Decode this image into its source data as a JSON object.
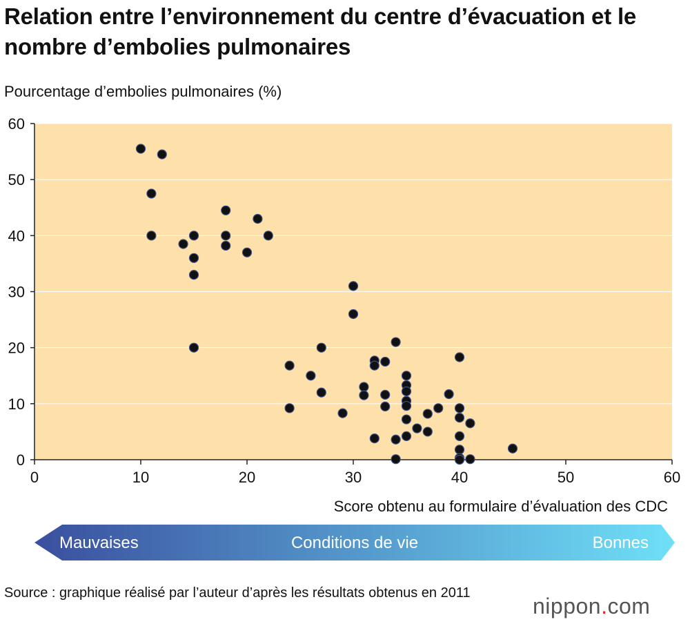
{
  "title": "Relation entre l’environnement du centre d’évacuation et le nombre d’embolies pulmonaires",
  "source": "Source : graphique réalisé par l’auteur d’après les résultats obtenus en 2011",
  "brand": {
    "name": "nippon",
    "dot": ".",
    "suffix": "com"
  },
  "arrow": {
    "left": "Mauvaises",
    "center": "Conditions de vie",
    "right": "Bonnes"
  },
  "colors": {
    "plot_bg": "#fde0aa",
    "grid": "#ffffff",
    "point": "#111111",
    "arrow_start": "#3a4f9e",
    "arrow_end": "#6fe0f8"
  },
  "chart_data": {
    "type": "scatter",
    "ylabel": "Pourcentage d’embolies pulmonaires (%)",
    "xlabel": "Score obtenu au formulaire d’évaluation des CDC",
    "xlim": [
      0,
      60
    ],
    "ylim": [
      0,
      60
    ],
    "xticks": [
      0,
      10,
      20,
      30,
      40,
      50,
      60
    ],
    "yticks": [
      0,
      10,
      20,
      30,
      40,
      50,
      60
    ],
    "grid": true,
    "points": [
      [
        10,
        55.5
      ],
      [
        12,
        54.5
      ],
      [
        11,
        47.5
      ],
      [
        11,
        40
      ],
      [
        14,
        38.5
      ],
      [
        15,
        40
      ],
      [
        15,
        36
      ],
      [
        15,
        33
      ],
      [
        15,
        20
      ],
      [
        18,
        44.5
      ],
      [
        18,
        40
      ],
      [
        18,
        38.2
      ],
      [
        20,
        37
      ],
      [
        21,
        43
      ],
      [
        22,
        40
      ],
      [
        24,
        16.8
      ],
      [
        24,
        9.2
      ],
      [
        26,
        15
      ],
      [
        27,
        20
      ],
      [
        27,
        12
      ],
      [
        29,
        8.3
      ],
      [
        30,
        31
      ],
      [
        30,
        26
      ],
      [
        31,
        13
      ],
      [
        31,
        11.5
      ],
      [
        32,
        17.7
      ],
      [
        32,
        16.8
      ],
      [
        32,
        3.8
      ],
      [
        33,
        17.5
      ],
      [
        33,
        11.6
      ],
      [
        33,
        9.5
      ],
      [
        34,
        21
      ],
      [
        34,
        3.6
      ],
      [
        34,
        0.1
      ],
      [
        35,
        15
      ],
      [
        35,
        13.3
      ],
      [
        35,
        12.2
      ],
      [
        35,
        10.5
      ],
      [
        35,
        9.6
      ],
      [
        35,
        7.2
      ],
      [
        35,
        4.2
      ],
      [
        36,
        5.6
      ],
      [
        37,
        8.2
      ],
      [
        37,
        5
      ],
      [
        38,
        9.2
      ],
      [
        39,
        11.7
      ],
      [
        40,
        18.3
      ],
      [
        40,
        9.2
      ],
      [
        40,
        7.5
      ],
      [
        40,
        4.2
      ],
      [
        40,
        1.8
      ],
      [
        40,
        0.3
      ],
      [
        40,
        0
      ],
      [
        41,
        6.5
      ],
      [
        41,
        0.1
      ],
      [
        45,
        2
      ]
    ]
  }
}
